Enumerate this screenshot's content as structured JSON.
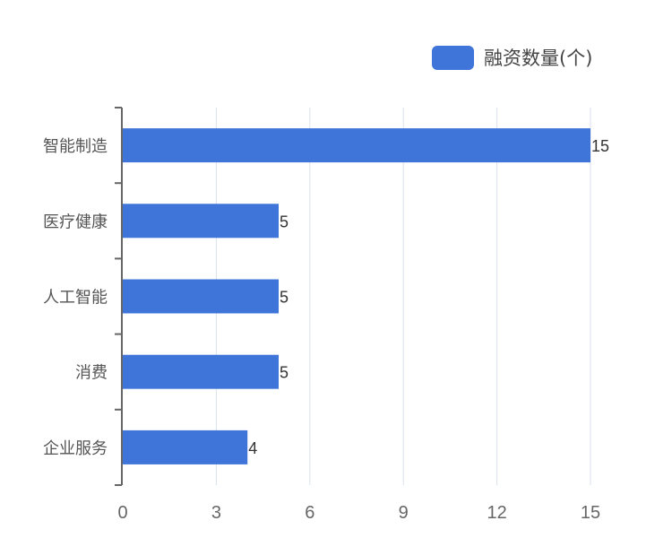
{
  "chart_data": {
    "type": "bar",
    "orientation": "horizontal",
    "title": "",
    "xlabel": "",
    "ylabel": "",
    "categories": [
      "智能制造",
      "医疗健康",
      "人工智能",
      "消费",
      "企业服务"
    ],
    "series": [
      {
        "name": "融资数量(个)",
        "values": [
          15,
          5,
          5,
          5,
          4
        ],
        "color": "#3f74d8"
      }
    ],
    "xlim": [
      0,
      15
    ],
    "x_ticks": [
      0,
      3,
      6,
      9,
      12,
      15
    ],
    "grid": {
      "vertical": true,
      "horizontal": false
    },
    "data_labels": true,
    "legend": {
      "position": "top-right",
      "entries": [
        "融资数量(个)"
      ]
    }
  },
  "colors": {
    "bar": "#3f74d8",
    "grid": "#d9e2ec",
    "axis": "#666666",
    "tick_label": "#666666",
    "category_label": "#555555",
    "data_label": "#333333"
  }
}
